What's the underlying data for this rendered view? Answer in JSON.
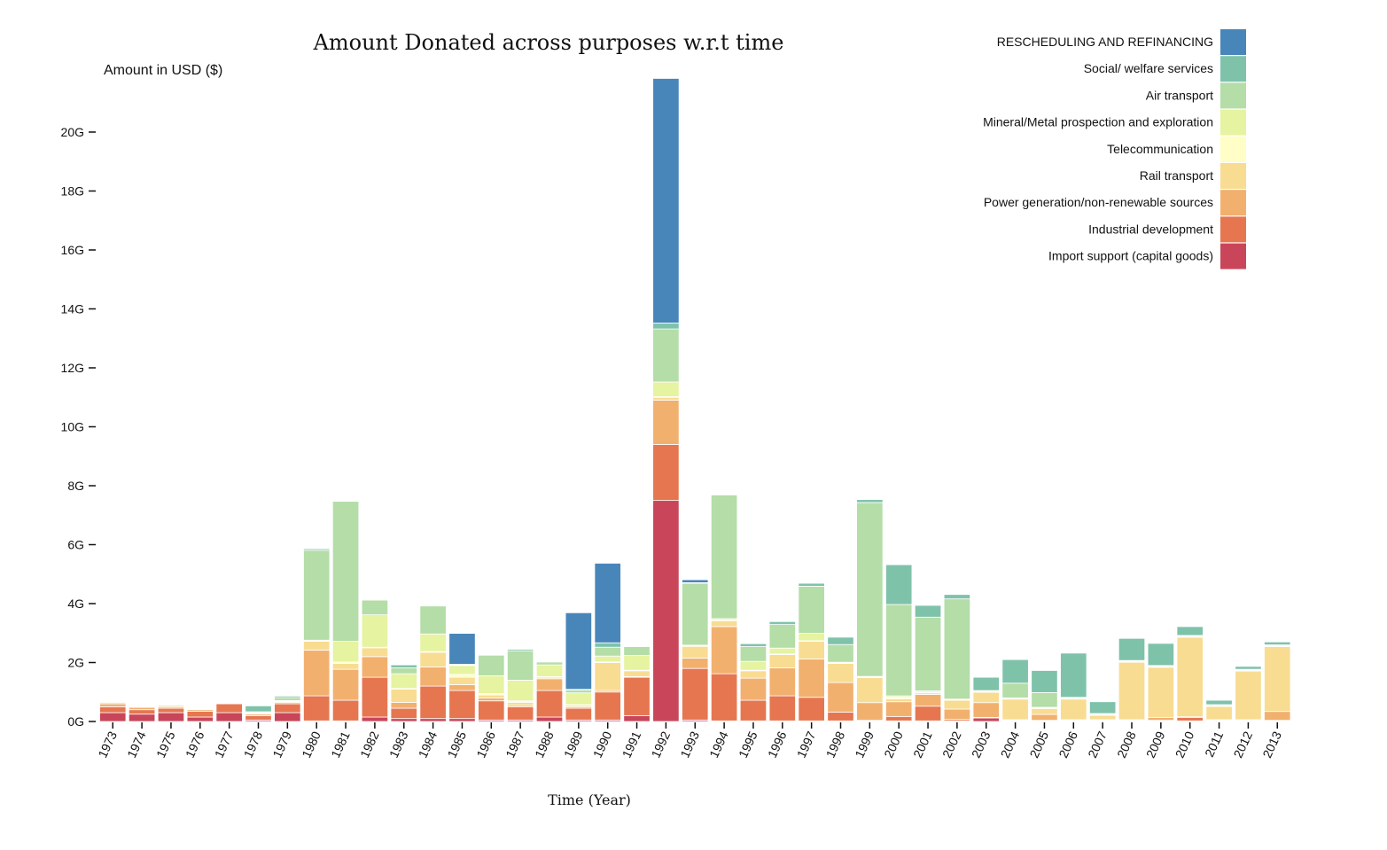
{
  "chart_data": {
    "type": "bar",
    "stacked": true,
    "title": "Amount Donated across purposes w.r.t time",
    "xlabel": "Time (Year)",
    "ylabel": "Amount in USD ($)",
    "ylim": [
      0,
      21.7
    ],
    "y_unit_suffix": "G",
    "y_ticks": [
      0,
      2,
      4,
      6,
      8,
      10,
      12,
      14,
      16,
      18,
      20
    ],
    "y_tick_labels": [
      "0G",
      "2G",
      "4G",
      "6G",
      "8G",
      "10G",
      "12G",
      "14G",
      "16G",
      "18G",
      "20G"
    ],
    "legend_position": "top-right",
    "categories": [
      "1973",
      "1974",
      "1975",
      "1976",
      "1977",
      "1978",
      "1979",
      "1980",
      "1981",
      "1982",
      "1983",
      "1984",
      "1985",
      "1986",
      "1987",
      "1988",
      "1989",
      "1990",
      "1991",
      "1992",
      "1993",
      "1994",
      "1995",
      "1996",
      "1997",
      "1998",
      "1999",
      "2000",
      "2001",
      "2002",
      "2003",
      "2004",
      "2005",
      "2006",
      "2007",
      "2008",
      "2009",
      "2010",
      "2011",
      "2012",
      "2013"
    ],
    "series": [
      {
        "name": "Import support (capital goods)",
        "color": "#c9465a",
        "values": [
          0.3,
          0.25,
          0.3,
          0.15,
          0.3,
          0.05,
          0.3,
          0.02,
          0.02,
          0.15,
          0.1,
          0.1,
          0.1,
          0.05,
          0.05,
          0.15,
          0.05,
          0.05,
          0.2,
          7.5,
          0.05,
          0.02,
          0.02,
          0.02,
          0.02,
          0.02,
          0.02,
          0.02,
          0.02,
          0.02,
          0.12,
          0.02,
          0.02,
          0.02,
          0.02,
          0.02,
          0.02,
          0.02,
          0.02,
          0.02,
          0.02
        ]
      },
      {
        "name": "Industrial development",
        "color": "#e67650",
        "values": [
          0.2,
          0.15,
          0.15,
          0.2,
          0.3,
          0.15,
          0.3,
          0.85,
          0.7,
          1.35,
          0.35,
          1.1,
          0.95,
          0.65,
          0.45,
          0.9,
          0.4,
          0.95,
          1.3,
          1.9,
          1.75,
          1.6,
          0.7,
          0.85,
          0.8,
          0.3,
          0.02,
          0.15,
          0.5,
          0.05,
          0.02,
          0.02,
          0.02,
          0.02,
          0.02,
          0.02,
          0.02,
          0.12,
          0.02,
          0.02,
          0.02
        ]
      },
      {
        "name": "Power generation/non-renewable sources",
        "color": "#f2b06e",
        "values": [
          0.1,
          0.08,
          0.05,
          0.05,
          0.02,
          0.05,
          0.05,
          1.55,
          1.05,
          0.7,
          0.2,
          0.65,
          0.2,
          0.1,
          0.05,
          0.4,
          0.05,
          0.05,
          0.02,
          1.5,
          0.35,
          1.6,
          0.75,
          0.95,
          1.3,
          1.0,
          0.6,
          0.5,
          0.4,
          0.35,
          0.5,
          0.02,
          0.2,
          0.02,
          0.02,
          0.02,
          0.1,
          0.02,
          0.02,
          0.02,
          0.3
        ]
      },
      {
        "name": "Rail transport",
        "color": "#f8dc92",
        "values": [
          0.05,
          0.02,
          0.05,
          0.02,
          0.02,
          0.02,
          0.02,
          0.3,
          0.2,
          0.3,
          0.45,
          0.5,
          0.25,
          0.1,
          0.1,
          0.05,
          0.05,
          0.95,
          0.2,
          0.1,
          0.4,
          0.2,
          0.25,
          0.45,
          0.6,
          0.65,
          0.85,
          0.1,
          0.05,
          0.3,
          0.35,
          0.7,
          0.2,
          0.7,
          0.15,
          1.95,
          1.7,
          2.7,
          0.45,
          1.65,
          2.2
        ]
      },
      {
        "name": "Telecommunication",
        "color": "#fefec6",
        "values": [
          0.02,
          0.02,
          0.02,
          0.02,
          0.02,
          0.02,
          0.02,
          0.02,
          0.05,
          0.02,
          0.02,
          0.02,
          0.1,
          0.05,
          0.05,
          0.02,
          0.02,
          0.02,
          0.02,
          0.02,
          0.02,
          0.02,
          0.02,
          0.02,
          0.02,
          0.02,
          0.02,
          0.05,
          0.02,
          0.02,
          0.02,
          0.02,
          0.02,
          0.02,
          0.02,
          0.02,
          0.02,
          0.02,
          0.02,
          0.02,
          0.02
        ]
      },
      {
        "name": "Mineral/Metal prospection and exploration",
        "color": "#e6f3a0",
        "values": [
          0.02,
          0.02,
          0.02,
          0.02,
          0.02,
          0.02,
          0.02,
          0.02,
          0.7,
          1.1,
          0.5,
          0.6,
          0.3,
          0.6,
          0.7,
          0.4,
          0.4,
          0.2,
          0.5,
          0.5,
          0.02,
          0.05,
          0.3,
          0.2,
          0.25,
          0.02,
          0.02,
          0.05,
          0.05,
          0.02,
          0.02,
          0.02,
          0.02,
          0.02,
          0.02,
          0.02,
          0.02,
          0.02,
          0.02,
          0.02,
          0.02
        ]
      },
      {
        "name": "Air transport",
        "color": "#b4dda8",
        "values": [
          0.02,
          0.02,
          0.02,
          0.02,
          0.02,
          0.02,
          0.1,
          3.05,
          4.75,
          0.5,
          0.2,
          0.95,
          0.02,
          0.7,
          1.0,
          0.1,
          0.1,
          0.3,
          0.3,
          1.8,
          2.1,
          4.2,
          0.5,
          0.8,
          1.6,
          0.6,
          5.9,
          3.1,
          2.5,
          3.4,
          0.02,
          0.5,
          0.5,
          0.02,
          0.02,
          0.02,
          0.02,
          0.02,
          0.02,
          0.02,
          0.02
        ]
      },
      {
        "name": "Social/ welfare services",
        "color": "#7fc2aa",
        "values": [
          0.02,
          0.02,
          0.02,
          0.02,
          0.02,
          0.2,
          0.05,
          0.05,
          0.02,
          0.02,
          0.1,
          0.02,
          0.02,
          0.02,
          0.05,
          0.02,
          0.02,
          0.15,
          0.02,
          0.2,
          0.02,
          0.02,
          0.1,
          0.1,
          0.1,
          0.25,
          0.1,
          1.35,
          0.4,
          0.15,
          0.45,
          0.8,
          0.75,
          1.5,
          0.4,
          0.75,
          0.75,
          0.3,
          0.15,
          0.1,
          0.1
        ]
      },
      {
        "name": "RESCHEDULING AND REFINANCING",
        "color": "#4886ba",
        "values": [
          0,
          0,
          0,
          0,
          0,
          0,
          0,
          0,
          0,
          0,
          0,
          0,
          1.05,
          0,
          0,
          0,
          2.6,
          2.7,
          0,
          8.3,
          0.1,
          0,
          0,
          0,
          0,
          0,
          0,
          0,
          0,
          0,
          0,
          0,
          0,
          0,
          0,
          0,
          0,
          0,
          0,
          0,
          0
        ]
      }
    ]
  }
}
